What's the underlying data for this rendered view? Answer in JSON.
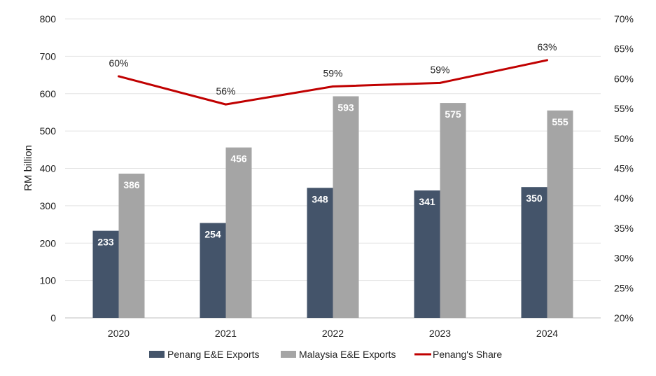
{
  "chart_data": {
    "type": "bar",
    "categories": [
      "2020",
      "2021",
      "2022",
      "2023",
      "2024"
    ],
    "series": [
      {
        "name": "Penang E&E Exports",
        "kind": "bar",
        "axis": "left",
        "values": [
          233,
          254,
          348,
          341,
          350
        ],
        "labels": [
          "233",
          "254",
          "348",
          "341",
          "350"
        ],
        "color": "#44546a"
      },
      {
        "name": "Malaysia E&E Exports",
        "kind": "bar",
        "axis": "left",
        "values": [
          386,
          456,
          593,
          575,
          555
        ],
        "labels": [
          "386",
          "456",
          "593",
          "575",
          "555"
        ],
        "color": "#a5a5a5"
      },
      {
        "name": "Penang's Share",
        "kind": "line",
        "axis": "right",
        "values": [
          60.4,
          55.7,
          58.7,
          59.3,
          63.1
        ],
        "labels": [
          "60%",
          "56%",
          "59%",
          "59%",
          "63%"
        ],
        "color": "#c00000"
      }
    ],
    "ylabel": "RM billion",
    "ylim": [
      0,
      800
    ],
    "yticks": [
      "0",
      "100",
      "200",
      "300",
      "400",
      "500",
      "600",
      "700",
      "800"
    ],
    "y2lim": [
      20,
      70
    ],
    "y2ticks": [
      "20%",
      "25%",
      "30%",
      "35%",
      "40%",
      "45%",
      "50%",
      "55%",
      "60%",
      "65%",
      "70%"
    ],
    "grid": true,
    "legend_position": "bottom"
  }
}
